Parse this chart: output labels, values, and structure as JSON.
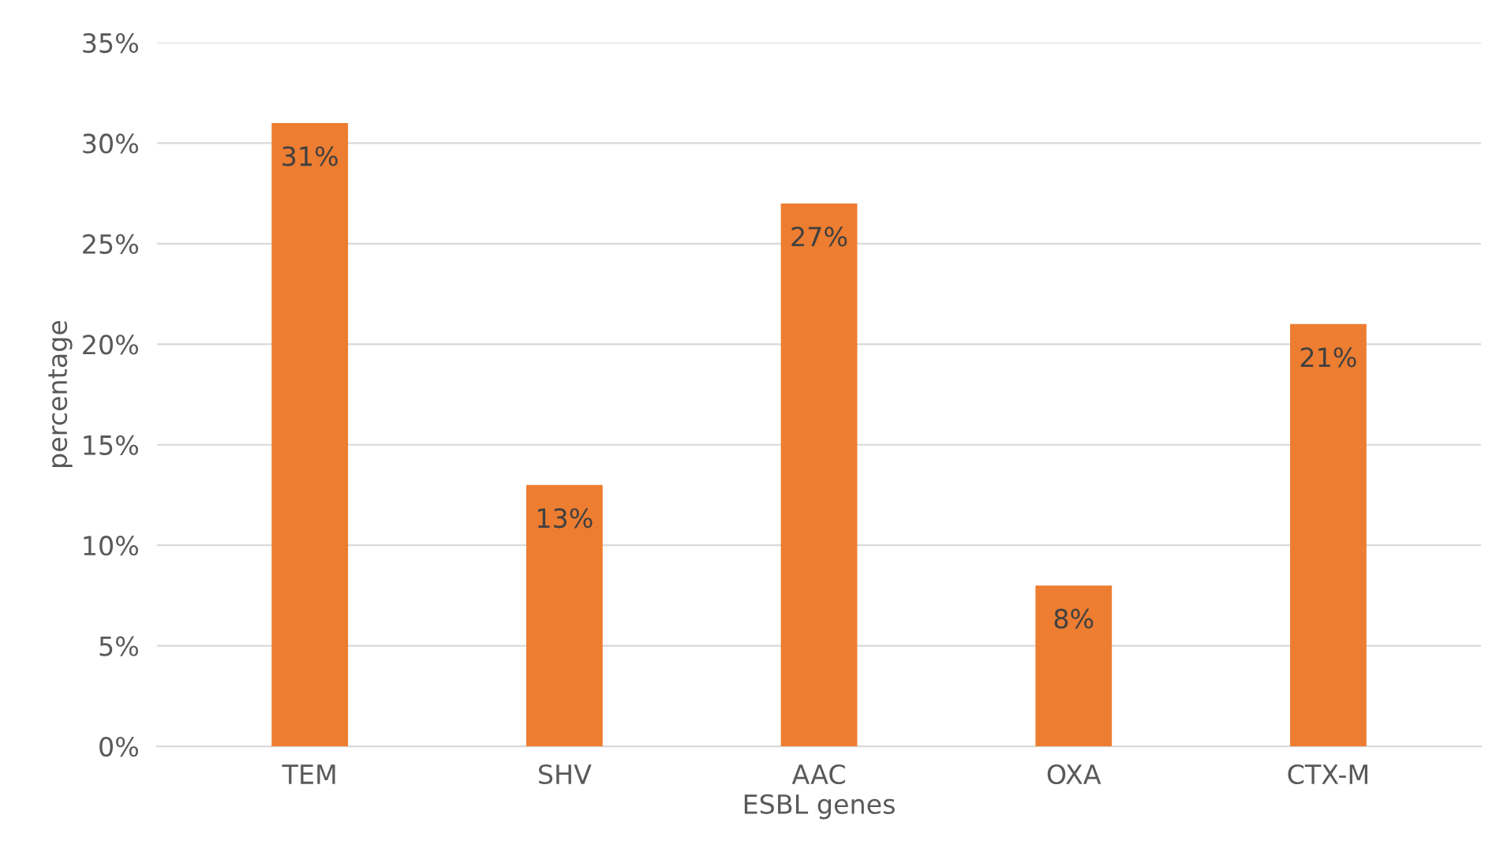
{
  "chart_data": {
    "type": "bar",
    "xlabel": "ESBL genes",
    "ylabel": "percentage",
    "categories": [
      "TEM",
      "SHV",
      "AAC",
      "OXA",
      "CTX-M"
    ],
    "values": [
      31,
      13,
      27,
      8,
      21
    ],
    "color": "#ed7d31",
    "value_labels": [
      "31%",
      "13%",
      "27%",
      "8%",
      "21%"
    ],
    "ylim": [
      0,
      35
    ],
    "yticks": [
      {
        "value": 0,
        "label": "0%"
      },
      {
        "value": 5,
        "label": "5%"
      },
      {
        "value": 10,
        "label": "10%"
      },
      {
        "value": 15,
        "label": "15%"
      },
      {
        "value": 20,
        "label": "20%"
      },
      {
        "value": 25,
        "label": "25%"
      },
      {
        "value": 30,
        "label": "30%"
      },
      {
        "value": 35,
        "label": "35%"
      }
    ],
    "grid": "y"
  }
}
